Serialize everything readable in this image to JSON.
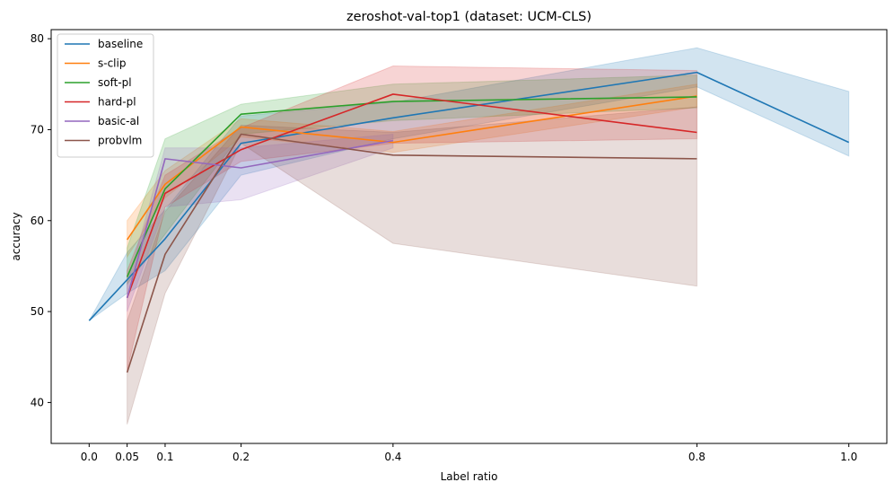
{
  "chart_data": {
    "type": "line",
    "title": "zeroshot-val-top1 (dataset: UCM-CLS)",
    "xlabel": "Label ratio",
    "ylabel": "accuracy",
    "xlim": [
      -0.05,
      1.05
    ],
    "ylim": [
      35.5,
      81
    ],
    "xticks": [
      0.0,
      0.05,
      0.1,
      0.2,
      0.4,
      0.8,
      1.0
    ],
    "xtick_labels": [
      "0.0",
      "0.05",
      "0.1",
      "0.2",
      "0.4",
      "0.8",
      "1.0"
    ],
    "yticks": [
      40,
      50,
      60,
      70,
      80
    ],
    "ytick_labels": [
      "40",
      "50",
      "60",
      "70",
      "80"
    ],
    "legend_position": "top-left",
    "grid": false,
    "series": [
      {
        "name": "baseline",
        "color": "#1f77b4",
        "x": [
          0.0,
          0.05,
          0.1,
          0.2,
          0.4,
          0.8,
          1.0
        ],
        "y": [
          49.0,
          53.5,
          58.0,
          68.5,
          71.3,
          76.3,
          68.6
        ],
        "lower": [
          49.0,
          52.0,
          54.5,
          65.0,
          69.0,
          74.7,
          67.1
        ],
        "upper": [
          49.0,
          56.5,
          61.2,
          71.5,
          73.0,
          79.0,
          74.2
        ]
      },
      {
        "name": "s-clip",
        "color": "#ff7f0e",
        "x": [
          0.05,
          0.1,
          0.2,
          0.4,
          0.8
        ],
        "y": [
          57.9,
          64.0,
          70.3,
          68.6,
          73.7
        ],
        "lower": [
          56.0,
          62.5,
          69.2,
          67.5,
          72.5
        ],
        "upper": [
          60.0,
          65.5,
          71.2,
          69.8,
          75.0
        ]
      },
      {
        "name": "soft-pl",
        "color": "#2ca02c",
        "x": [
          0.05,
          0.1,
          0.2,
          0.4,
          0.8
        ],
        "y": [
          53.8,
          63.5,
          71.7,
          73.1,
          73.6
        ],
        "lower": [
          53.0,
          58.5,
          69.5,
          71.0,
          72.4
        ],
        "upper": [
          57.0,
          69.0,
          72.8,
          75.0,
          76.0
        ]
      },
      {
        "name": "hard-pl",
        "color": "#d62728",
        "x": [
          0.05,
          0.1,
          0.2,
          0.4,
          0.8
        ],
        "y": [
          51.5,
          63.0,
          67.8,
          73.9,
          69.7
        ],
        "lower": [
          43.5,
          61.5,
          66.5,
          68.5,
          69.0
        ],
        "upper": [
          54.5,
          65.0,
          70.2,
          77.0,
          76.5
        ]
      },
      {
        "name": "basic-al",
        "color": "#9467bd",
        "x": [
          0.05,
          0.1,
          0.2,
          0.4
        ],
        "y": [
          51.5,
          66.8,
          65.8,
          68.8
        ],
        "lower": [
          50.0,
          61.5,
          62.3,
          68.0
        ],
        "upper": [
          53.0,
          68.0,
          68.0,
          69.5
        ]
      },
      {
        "name": "probvlm",
        "color": "#8c564b",
        "x": [
          0.05,
          0.1,
          0.2,
          0.4,
          0.8
        ],
        "y": [
          43.3,
          56.3,
          69.5,
          67.2,
          66.8
        ],
        "lower": [
          37.6,
          52.0,
          68.5,
          57.5,
          52.8
        ],
        "upper": [
          49.0,
          61.0,
          70.5,
          69.7,
          72.5
        ]
      }
    ]
  }
}
